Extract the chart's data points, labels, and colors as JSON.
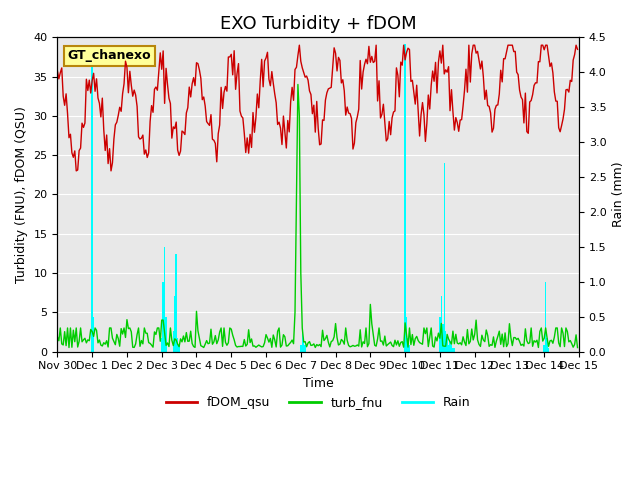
{
  "title": "EXO Turbidity + fDOM",
  "xlabel": "Time",
  "ylabel_left": "Turbidity (FNU), fDOM (QSU)",
  "ylabel_right": "Rain (mm)",
  "ylim_left": [
    0,
    40
  ],
  "ylim_right": [
    0,
    4.5
  ],
  "xlim": [
    0,
    360
  ],
  "x_tick_labels": [
    "Nov 30",
    "Dec 1",
    "Dec 2",
    "Dec 3",
    "Dec 4",
    "Dec 5",
    "Dec 6",
    "Dec 7",
    "Dec 8",
    "Dec 9",
    "Dec 10",
    "Dec 11",
    "Dec 12",
    "Dec 13",
    "Dec 14",
    "Dec 15"
  ],
  "x_tick_positions": [
    0,
    24,
    48,
    72,
    96,
    120,
    144,
    168,
    192,
    216,
    240,
    264,
    288,
    312,
    336,
    360
  ],
  "annotation_text": "GT_chanexo",
  "annotation_color": "#ffff99",
  "annotation_border": "#b8860b",
  "bg_color": "#e8e8e8",
  "fdom_color": "#cc0000",
  "turb_color": "#00cc00",
  "rain_color": "#00ffff",
  "legend_labels": [
    "fDOM_qsu",
    "turb_fnu",
    "Rain"
  ],
  "title_fontsize": 13,
  "axis_label_fontsize": 9,
  "tick_label_fontsize": 8
}
